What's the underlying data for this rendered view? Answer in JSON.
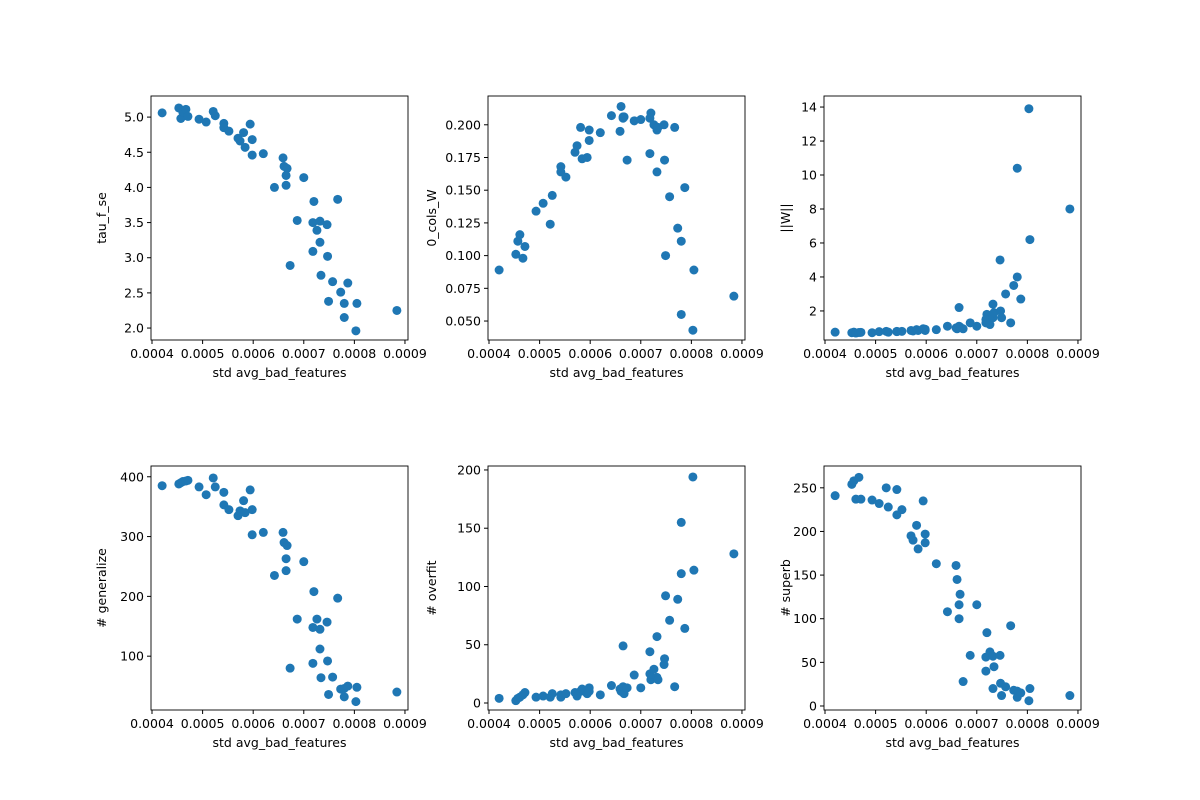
{
  "chart_data": [
    {
      "type": "scatter",
      "xlabel": "std avg_bad_features",
      "ylabel": "tau_f_se",
      "color": "#1f77b4",
      "xlim": [
        0.000398,
        0.000906
      ],
      "xticks": [
        0.0004,
        0.0005,
        0.0006,
        0.0007,
        0.0008,
        0.0009
      ],
      "ylim": [
        1.83,
        5.3
      ],
      "yticks": [
        {
          "value": 2,
          "label": "2.0"
        },
        2.5,
        {
          "value": 3,
          "label": "3.0"
        },
        3.5,
        {
          "value": 4,
          "label": "4.0"
        },
        4.5,
        {
          "value": 5,
          "label": "5.0"
        }
      ],
      "x": [
        0.00042,
        0.000453,
        0.000457,
        0.000461,
        0.000467,
        0.000471,
        0.000493,
        0.000507,
        0.000521,
        0.000525,
        0.000542,
        0.000542,
        0.000552,
        0.00057,
        0.000574,
        0.000581,
        0.000584,
        0.000594,
        0.000598,
        0.000598,
        0.00062,
        0.000642,
        0.000659,
        0.000661,
        0.000667,
        0.000665,
        0.000665,
        0.000673,
        0.000687,
        0.0007,
        0.000718,
        0.00072,
        0.000718,
        0.000726,
        0.000732,
        0.000732,
        0.000734,
        0.000746,
        0.000747,
        0.000749,
        0.000757,
        0.000767,
        0.000773,
        0.00078,
        0.00078,
        0.000787,
        0.000803,
        0.000805,
        0.000884
      ],
      "values": [
        5.06,
        5.13,
        4.98,
        5.07,
        5.11,
        5.01,
        4.97,
        4.93,
        5.08,
        5.02,
        4.91,
        4.85,
        4.8,
        4.7,
        4.66,
        4.78,
        4.57,
        4.9,
        4.68,
        4.46,
        4.48,
        4.0,
        4.42,
        4.3,
        4.27,
        4.17,
        4.03,
        2.89,
        3.53,
        4.14,
        3.5,
        3.8,
        3.09,
        3.39,
        3.52,
        3.22,
        2.75,
        3.47,
        3.02,
        2.38,
        2.66,
        3.83,
        2.51,
        2.35,
        2.15,
        2.64,
        1.96,
        2.35,
        2.25
      ]
    },
    {
      "type": "scatter",
      "xlabel": "std avg_bad_features",
      "ylabel": "0_cols_W",
      "color": "#1f77b4",
      "xlim": [
        0.000398,
        0.000906
      ],
      "xticks": [
        0.0004,
        0.0005,
        0.0006,
        0.0007,
        0.0008,
        0.0009
      ],
      "ylim": [
        0.0355,
        0.222
      ],
      "yticks": [
        {
          "value": 0.05,
          "label": "0.050"
        },
        0.075,
        {
          "value": 0.1,
          "label": "0.100"
        },
        0.125,
        {
          "value": 0.15,
          "label": "0.150"
        },
        0.175,
        {
          "value": 0.2,
          "label": "0.200"
        }
      ],
      "x": [
        0.00042,
        0.000453,
        0.000457,
        0.000461,
        0.000467,
        0.000471,
        0.000493,
        0.000507,
        0.000521,
        0.000525,
        0.000542,
        0.000542,
        0.000552,
        0.00057,
        0.000574,
        0.000581,
        0.000584,
        0.000594,
        0.000598,
        0.000598,
        0.00062,
        0.000642,
        0.000659,
        0.000661,
        0.000667,
        0.000665,
        0.000665,
        0.000673,
        0.000687,
        0.0007,
        0.000718,
        0.00072,
        0.000718,
        0.000726,
        0.000732,
        0.000732,
        0.000734,
        0.000746,
        0.000747,
        0.000749,
        0.000757,
        0.000767,
        0.000773,
        0.00078,
        0.00078,
        0.000787,
        0.000803,
        0.000805,
        0.000884
      ],
      "values": [
        0.089,
        0.101,
        0.111,
        0.116,
        0.098,
        0.107,
        0.134,
        0.14,
        0.124,
        0.146,
        0.168,
        0.164,
        0.16,
        0.179,
        0.184,
        0.198,
        0.174,
        0.175,
        0.196,
        0.188,
        0.194,
        0.207,
        0.195,
        0.214,
        0.206,
        0.206,
        0.205,
        0.173,
        0.203,
        0.204,
        0.178,
        0.209,
        0.205,
        0.2,
        0.196,
        0.164,
        0.198,
        0.2,
        0.173,
        0.1,
        0.145,
        0.198,
        0.121,
        0.111,
        0.055,
        0.152,
        0.043,
        0.089,
        0.069
      ]
    },
    {
      "type": "scatter",
      "xlabel": "std avg_bad_features",
      "ylabel": "||W||",
      "color": "#1f77b4",
      "xlim": [
        0.000398,
        0.000906
      ],
      "xticks": [
        0.0004,
        0.0005,
        0.0006,
        0.0007,
        0.0008,
        0.0009
      ],
      "ylim": [
        0.29,
        14.65
      ],
      "yticks": [
        2,
        4,
        6,
        8,
        10,
        12,
        14
      ],
      "x": [
        0.00042,
        0.000453,
        0.000457,
        0.000461,
        0.000467,
        0.000471,
        0.000493,
        0.000507,
        0.000521,
        0.000525,
        0.000542,
        0.000542,
        0.000552,
        0.00057,
        0.000574,
        0.000581,
        0.000584,
        0.000594,
        0.000598,
        0.000598,
        0.00062,
        0.000642,
        0.000659,
        0.000661,
        0.000667,
        0.000665,
        0.000665,
        0.000673,
        0.000687,
        0.0007,
        0.000718,
        0.00072,
        0.000718,
        0.000726,
        0.000732,
        0.000732,
        0.000734,
        0.000746,
        0.000747,
        0.000749,
        0.000757,
        0.000767,
        0.000773,
        0.00078,
        0.00078,
        0.000787,
        0.000803,
        0.000805,
        0.000884
      ],
      "values": [
        0.75,
        0.72,
        0.75,
        0.7,
        0.73,
        0.74,
        0.72,
        0.78,
        0.8,
        0.75,
        0.8,
        0.78,
        0.8,
        0.85,
        0.82,
        0.9,
        0.85,
        0.95,
        0.85,
        0.92,
        0.9,
        1.1,
        1.0,
        0.95,
        1.05,
        2.2,
        1.1,
        0.95,
        1.3,
        1.1,
        1.3,
        1.8,
        1.5,
        1.2,
        1.6,
        2.4,
        1.9,
        5.0,
        2.0,
        1.6,
        3.0,
        1.3,
        3.5,
        10.4,
        4.0,
        2.7,
        13.9,
        6.2,
        8.0
      ]
    },
    {
      "type": "scatter",
      "xlabel": "std avg_bad_features",
      "ylabel": "# generalize",
      "color": "#1f77b4",
      "xlim": [
        0.000398,
        0.000906
      ],
      "xticks": [
        0.0004,
        0.0005,
        0.0006,
        0.0007,
        0.0008,
        0.0009
      ],
      "ylim": [
        10,
        418
      ],
      "yticks": [
        100,
        200,
        300,
        400
      ],
      "x": [
        0.00042,
        0.000453,
        0.000457,
        0.000461,
        0.000467,
        0.000471,
        0.000493,
        0.000507,
        0.000521,
        0.000525,
        0.000542,
        0.000542,
        0.000552,
        0.00057,
        0.000574,
        0.000581,
        0.000584,
        0.000594,
        0.000598,
        0.000598,
        0.00062,
        0.000642,
        0.000659,
        0.000661,
        0.000667,
        0.000665,
        0.000665,
        0.000673,
        0.000687,
        0.0007,
        0.000718,
        0.00072,
        0.000718,
        0.000726,
        0.000732,
        0.000732,
        0.000734,
        0.000746,
        0.000747,
        0.000749,
        0.000757,
        0.000767,
        0.000773,
        0.00078,
        0.00078,
        0.000787,
        0.000803,
        0.000805,
        0.000884
      ],
      "values": [
        385,
        388,
        390,
        392,
        393,
        394,
        383,
        370,
        398,
        383,
        374,
        353,
        345,
        335,
        343,
        360,
        340,
        378,
        345,
        303,
        307,
        235,
        307,
        290,
        285,
        263,
        243,
        80,
        162,
        258,
        148,
        208,
        88,
        162,
        145,
        112,
        64,
        157,
        92,
        36,
        65,
        197,
        45,
        32,
        46,
        50,
        24,
        48,
        40
      ]
    },
    {
      "type": "scatter",
      "xlabel": "std avg_bad_features",
      "ylabel": "# overfit",
      "color": "#1f77b4",
      "xlim": [
        0.000398,
        0.000906
      ],
      "xticks": [
        0.0004,
        0.0005,
        0.0006,
        0.0007,
        0.0008,
        0.0009
      ],
      "ylim": [
        -6,
        203.4
      ],
      "yticks": [
        0,
        50,
        100,
        150,
        200
      ],
      "x": [
        0.00042,
        0.000453,
        0.000457,
        0.000461,
        0.000467,
        0.000471,
        0.000493,
        0.000507,
        0.000521,
        0.000525,
        0.000542,
        0.000542,
        0.000552,
        0.00057,
        0.000574,
        0.000581,
        0.000584,
        0.000594,
        0.000598,
        0.000598,
        0.00062,
        0.000642,
        0.000659,
        0.000661,
        0.000667,
        0.000665,
        0.000665,
        0.000673,
        0.000687,
        0.0007,
        0.000718,
        0.00072,
        0.000718,
        0.000726,
        0.000732,
        0.000732,
        0.000734,
        0.000746,
        0.000747,
        0.000749,
        0.000757,
        0.000767,
        0.000773,
        0.00078,
        0.00078,
        0.000787,
        0.000803,
        0.000805,
        0.000884
      ],
      "values": [
        4,
        2,
        4,
        5,
        7,
        9,
        5,
        6,
        5,
        8,
        5,
        7,
        8,
        9,
        6,
        10,
        12,
        8,
        13,
        10,
        7,
        15,
        12,
        10,
        8,
        49,
        14,
        13,
        24,
        13,
        44,
        20,
        25,
        29,
        22,
        57,
        20,
        33,
        38,
        92,
        71,
        14,
        89,
        111,
        155,
        64,
        194,
        114,
        128
      ]
    },
    {
      "type": "scatter",
      "xlabel": "std avg_bad_features",
      "ylabel": "# superb",
      "color": "#1f77b4",
      "xlim": [
        0.000398,
        0.000906
      ],
      "xticks": [
        0.0004,
        0.0005,
        0.0006,
        0.0007,
        0.0008,
        0.0009
      ],
      "ylim": [
        -4.6,
        275
      ],
      "yticks": [
        0,
        50,
        100,
        150,
        200,
        250
      ],
      "x": [
        0.00042,
        0.000453,
        0.000457,
        0.000461,
        0.000467,
        0.000471,
        0.000493,
        0.000507,
        0.000521,
        0.000525,
        0.000542,
        0.000542,
        0.000552,
        0.00057,
        0.000574,
        0.000581,
        0.000584,
        0.000594,
        0.000598,
        0.000598,
        0.00062,
        0.000642,
        0.000659,
        0.000661,
        0.000667,
        0.000665,
        0.000665,
        0.000673,
        0.000687,
        0.0007,
        0.000718,
        0.00072,
        0.000718,
        0.000726,
        0.000732,
        0.000732,
        0.000734,
        0.000746,
        0.000747,
        0.000749,
        0.000757,
        0.000767,
        0.000773,
        0.00078,
        0.00078,
        0.000787,
        0.000803,
        0.000805,
        0.000884
      ],
      "values": [
        241,
        254,
        258,
        237,
        262,
        237,
        236,
        232,
        250,
        228,
        248,
        219,
        225,
        195,
        190,
        207,
        180,
        235,
        187,
        197,
        163,
        108,
        161,
        145,
        128,
        116,
        100,
        28,
        58,
        116,
        56,
        84,
        40,
        62,
        57,
        20,
        45,
        58,
        26,
        12,
        22,
        92,
        18,
        17,
        10,
        15,
        6,
        20,
        12
      ]
    }
  ]
}
